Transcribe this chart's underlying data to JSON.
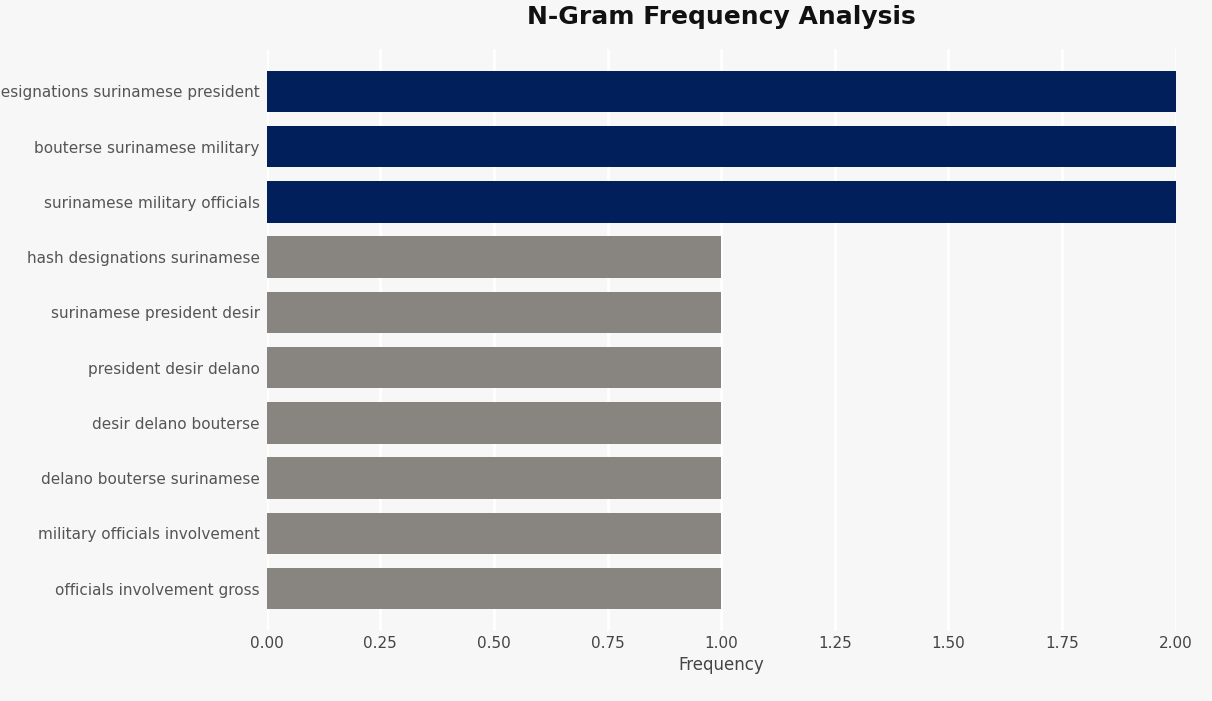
{
  "title": "N-Gram Frequency Analysis",
  "xlabel": "Frequency",
  "categories": [
    "officials involvement gross",
    "military officials involvement",
    "delano bouterse surinamese",
    "desir delano bouterse",
    "president desir delano",
    "surinamese president desir",
    "hash designations surinamese",
    "surinamese military officials",
    "bouterse surinamese military",
    "designations surinamese president"
  ],
  "values": [
    1,
    1,
    1,
    1,
    1,
    1,
    1,
    2,
    2,
    2
  ],
  "colors": [
    "#888480",
    "#888480",
    "#888480",
    "#888480",
    "#888480",
    "#888480",
    "#888480",
    "#001f5b",
    "#001f5b",
    "#001f5b"
  ],
  "xlim": [
    0,
    2.0
  ],
  "xticks": [
    0.0,
    0.25,
    0.5,
    0.75,
    1.0,
    1.25,
    1.5,
    1.75,
    2.0
  ],
  "background_color": "#f7f7f7",
  "plot_bg_color": "#f7f7f7",
  "title_fontsize": 18,
  "label_fontsize": 11,
  "tick_fontsize": 11,
  "bar_height": 0.75,
  "grid_color": "#ffffff",
  "grid_linewidth": 2.0,
  "ylabel_color": "#555555",
  "xlabel_color": "#444444"
}
